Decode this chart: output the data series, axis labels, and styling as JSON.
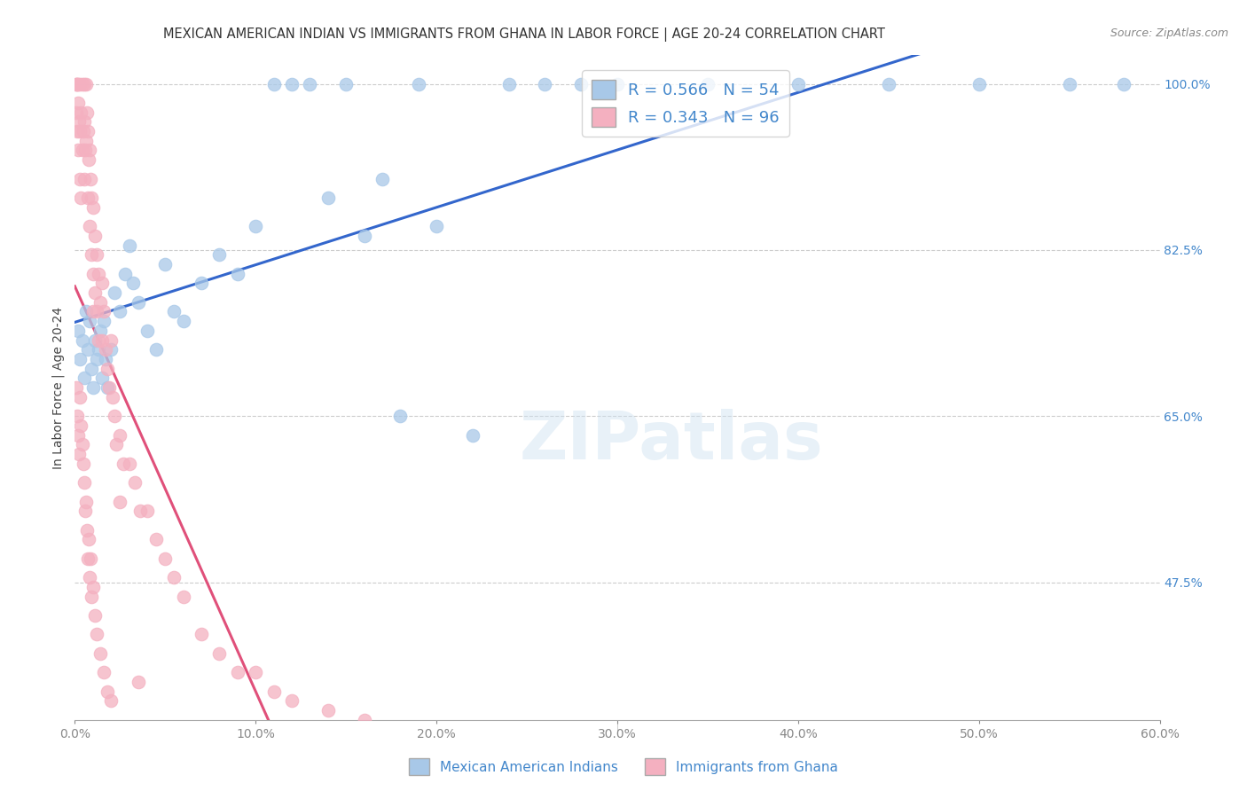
{
  "title": "MEXICAN AMERICAN INDIAN VS IMMIGRANTS FROM GHANA IN LABOR FORCE | AGE 20-24 CORRELATION CHART",
  "source": "Source: ZipAtlas.com",
  "ylabel": "In Labor Force | Age 20-24",
  "xlim": [
    0.0,
    60.0
  ],
  "ylim": [
    33.0,
    103.0
  ],
  "xtick_positions": [
    0,
    10,
    20,
    30,
    40,
    50,
    60
  ],
  "xticklabels": [
    "0.0%",
    "10.0%",
    "20.0%",
    "30.0%",
    "40.0%",
    "50.0%",
    "60.0%"
  ],
  "ytick_positions": [
    47.5,
    65.0,
    82.5,
    100.0
  ],
  "ytick_labels": [
    "47.5%",
    "65.0%",
    "82.5%",
    "100.0%"
  ],
  "blue_R": 0.566,
  "blue_N": 54,
  "pink_R": 0.343,
  "pink_N": 96,
  "blue_color": "#a8c8e8",
  "pink_color": "#f4b0c0",
  "blue_line_color": "#3366cc",
  "pink_line_color": "#e0507a",
  "legend_label_blue": "Mexican American Indians",
  "legend_label_pink": "Immigrants from Ghana",
  "watermark": "ZIPatlas",
  "blue_x": [
    0.2,
    0.3,
    0.4,
    0.5,
    0.6,
    0.7,
    0.8,
    0.9,
    1.0,
    1.1,
    1.2,
    1.3,
    1.4,
    1.5,
    1.6,
    1.7,
    1.8,
    2.0,
    2.2,
    2.5,
    2.8,
    3.0,
    3.2,
    3.5,
    4.0,
    4.5,
    5.0,
    5.5,
    6.0,
    7.0,
    8.0,
    9.0,
    10.0,
    11.0,
    12.0,
    13.0,
    14.0,
    15.0,
    16.0,
    17.0,
    18.0,
    19.0,
    20.0,
    22.0,
    24.0,
    26.0,
    28.0,
    30.0,
    35.0,
    40.0,
    45.0,
    50.0,
    55.0,
    58.0
  ],
  "blue_y": [
    74,
    71,
    73,
    69,
    76,
    72,
    75,
    70,
    68,
    73,
    71,
    72,
    74,
    69,
    75,
    71,
    68,
    72,
    78,
    76,
    80,
    83,
    79,
    77,
    74,
    72,
    81,
    76,
    75,
    79,
    82,
    80,
    85,
    100,
    100,
    100,
    88,
    100,
    84,
    90,
    65,
    100,
    85,
    63,
    100,
    100,
    100,
    100,
    100,
    100,
    100,
    100,
    100,
    100
  ],
  "pink_x": [
    0.1,
    0.1,
    0.1,
    0.15,
    0.15,
    0.2,
    0.2,
    0.2,
    0.25,
    0.3,
    0.3,
    0.3,
    0.35,
    0.35,
    0.4,
    0.4,
    0.45,
    0.5,
    0.5,
    0.5,
    0.55,
    0.6,
    0.6,
    0.65,
    0.7,
    0.7,
    0.75,
    0.8,
    0.8,
    0.85,
    0.9,
    0.9,
    1.0,
    1.0,
    1.0,
    1.1,
    1.1,
    1.2,
    1.2,
    1.3,
    1.3,
    1.4,
    1.5,
    1.5,
    1.6,
    1.7,
    1.8,
    1.9,
    2.0,
    2.1,
    2.2,
    2.3,
    2.5,
    2.7,
    3.0,
    3.3,
    3.6,
    4.0,
    4.5,
    5.0,
    5.5,
    6.0,
    7.0,
    8.0,
    9.0,
    10.0,
    11.0,
    12.0,
    14.0,
    16.0,
    0.1,
    0.15,
    0.2,
    0.25,
    0.3,
    0.35,
    0.4,
    0.45,
    0.5,
    0.55,
    0.6,
    0.65,
    0.7,
    0.75,
    0.8,
    0.85,
    0.9,
    1.0,
    1.1,
    1.2,
    1.4,
    1.6,
    1.8,
    2.0,
    2.5,
    3.5
  ],
  "pink_y": [
    100,
    100,
    97,
    100,
    95,
    100,
    98,
    93,
    96,
    100,
    95,
    90,
    97,
    88,
    100,
    93,
    95,
    100,
    96,
    90,
    93,
    100,
    94,
    97,
    95,
    88,
    92,
    93,
    85,
    90,
    88,
    82,
    87,
    80,
    76,
    84,
    78,
    82,
    76,
    80,
    73,
    77,
    79,
    73,
    76,
    72,
    70,
    68,
    73,
    67,
    65,
    62,
    63,
    60,
    60,
    58,
    55,
    55,
    52,
    50,
    48,
    46,
    42,
    40,
    38,
    38,
    36,
    35,
    34,
    33,
    68,
    65,
    63,
    61,
    67,
    64,
    62,
    60,
    58,
    55,
    56,
    53,
    50,
    52,
    48,
    50,
    46,
    47,
    44,
    42,
    40,
    38,
    36,
    35,
    56,
    37
  ]
}
